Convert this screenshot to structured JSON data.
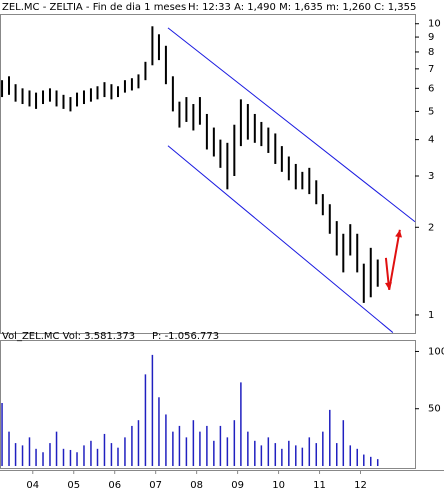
{
  "chart_data": [
    {
      "type": "hilo",
      "title": "ZEL.MC - ZELTIA - Fin de dia 1 meses",
      "subtitle": "H: 12:33  A: 1,490  M: 1,635  m: 1,260  C: 1,355",
      "x": [
        2003.75,
        2003.92,
        2004.08,
        2004.25,
        2004.42,
        2004.58,
        2004.75,
        2004.92,
        2005.08,
        2005.25,
        2005.42,
        2005.58,
        2005.75,
        2005.92,
        2006.08,
        2006.25,
        2006.42,
        2006.58,
        2006.75,
        2006.92,
        2007.08,
        2007.25,
        2007.42,
        2007.58,
        2007.75,
        2007.92,
        2008.08,
        2008.25,
        2008.42,
        2008.58,
        2008.75,
        2008.92,
        2009.08,
        2009.25,
        2009.42,
        2009.58,
        2009.75,
        2009.92,
        2010.08,
        2010.25,
        2010.42,
        2010.58,
        2010.75,
        2010.92,
        2011.08,
        2011.25,
        2011.42,
        2011.58,
        2011.75,
        2011.92,
        2012.08,
        2012.25,
        2012.42,
        2012.58,
        2012.75,
        2012.92
      ],
      "high": [
        6.4,
        6.6,
        6.2,
        6.0,
        5.9,
        5.8,
        5.9,
        6.0,
        5.9,
        5.7,
        5.6,
        5.8,
        5.9,
        6.0,
        6.1,
        6.3,
        6.2,
        6.1,
        6.4,
        6.5,
        6.7,
        7.4,
        9.8,
        9.2,
        8.4,
        6.6,
        5.4,
        5.6,
        5.3,
        5.6,
        4.9,
        4.4,
        4.0,
        3.9,
        4.5,
        5.5,
        5.3,
        4.9,
        4.6,
        4.4,
        4.2,
        3.8,
        3.5,
        3.3,
        3.1,
        3.2,
        2.9,
        2.6,
        2.4,
        2.1,
        1.9,
        2.05,
        1.9,
        1.5,
        1.7,
        1.55
      ],
      "low": [
        5.6,
        5.7,
        5.4,
        5.3,
        5.2,
        5.1,
        5.3,
        5.4,
        5.2,
        5.1,
        5.0,
        5.2,
        5.3,
        5.4,
        5.5,
        5.6,
        5.5,
        5.6,
        5.8,
        5.9,
        6.0,
        6.4,
        7.2,
        7.5,
        6.2,
        5.0,
        4.4,
        4.6,
        4.3,
        4.5,
        3.7,
        3.5,
        3.2,
        2.7,
        3.0,
        3.8,
        4.0,
        3.9,
        3.8,
        3.6,
        3.3,
        3.1,
        2.9,
        2.7,
        2.7,
        2.6,
        2.4,
        2.2,
        1.9,
        1.6,
        1.4,
        1.6,
        1.4,
        1.1,
        1.15,
        1.25
      ],
      "color": "#000000",
      "channel_lines": [
        {
          "x": [
            2007.8,
            2013.83
          ],
          "y": [
            9.68,
            2.09
          ]
        },
        {
          "x": [
            2007.8,
            2013.29
          ],
          "y": [
            3.81,
            0.87
          ]
        }
      ],
      "channel_color": "#1a1ae0",
      "arrow": {
        "x": [
          2013.12,
          2013.2,
          2013.46
        ],
        "y": [
          1.57,
          1.22,
          1.96
        ],
        "color": "#e01010"
      },
      "xlim": [
        2003.7,
        2013.83
      ],
      "ylim": [
        0.867,
        10.8
      ],
      "log_scale": true,
      "yticks": [
        1,
        2,
        3,
        4,
        5,
        6,
        7,
        8,
        9,
        10
      ]
    },
    {
      "type": "bar",
      "title": "Vol_ZEL.MC  Vol: 3.581.373",
      "subtitle": "P: -1.056.773",
      "subtitle_color": "#e01010",
      "x": [
        2003.75,
        2003.92,
        2004.08,
        2004.25,
        2004.42,
        2004.58,
        2004.75,
        2004.92,
        2005.08,
        2005.25,
        2005.42,
        2005.58,
        2005.75,
        2005.92,
        2006.08,
        2006.25,
        2006.42,
        2006.58,
        2006.75,
        2006.92,
        2007.08,
        2007.25,
        2007.42,
        2007.58,
        2007.75,
        2007.92,
        2008.08,
        2008.25,
        2008.42,
        2008.58,
        2008.75,
        2008.92,
        2009.08,
        2009.25,
        2009.42,
        2009.58,
        2009.75,
        2009.92,
        2010.08,
        2010.25,
        2010.42,
        2010.58,
        2010.75,
        2010.92,
        2011.08,
        2011.25,
        2011.42,
        2011.58,
        2011.75,
        2011.92,
        2012.08,
        2012.25,
        2012.42,
        2012.58,
        2012.75,
        2012.92
      ],
      "values": [
        55,
        30,
        20,
        18,
        25,
        15,
        12,
        20,
        30,
        15,
        14,
        12,
        18,
        22,
        15,
        28,
        20,
        16,
        25,
        35,
        40,
        80,
        97,
        60,
        45,
        30,
        35,
        25,
        40,
        30,
        35,
        22,
        35,
        25,
        40,
        73,
        30,
        22,
        18,
        25,
        20,
        15,
        22,
        18,
        16,
        25,
        20,
        30,
        49,
        20,
        40,
        18,
        15,
        10,
        8,
        6
      ],
      "color": "#2020c0",
      "xlim": [
        2003.7,
        2013.83
      ],
      "ylim": [
        0,
        110
      ],
      "yticks": [
        100,
        50
      ],
      "xticks": [
        {
          "value": 2004.5,
          "label": "04"
        },
        {
          "value": 2005.5,
          "label": "05"
        },
        {
          "value": 2006.5,
          "label": "06"
        },
        {
          "value": 2007.5,
          "label": "07"
        },
        {
          "value": 2008.5,
          "label": "08"
        },
        {
          "value": 2009.5,
          "label": "09"
        },
        {
          "value": 2010.5,
          "label": "10"
        },
        {
          "value": 2011.5,
          "label": "11"
        },
        {
          "value": 2012.5,
          "label": "12"
        }
      ]
    }
  ]
}
